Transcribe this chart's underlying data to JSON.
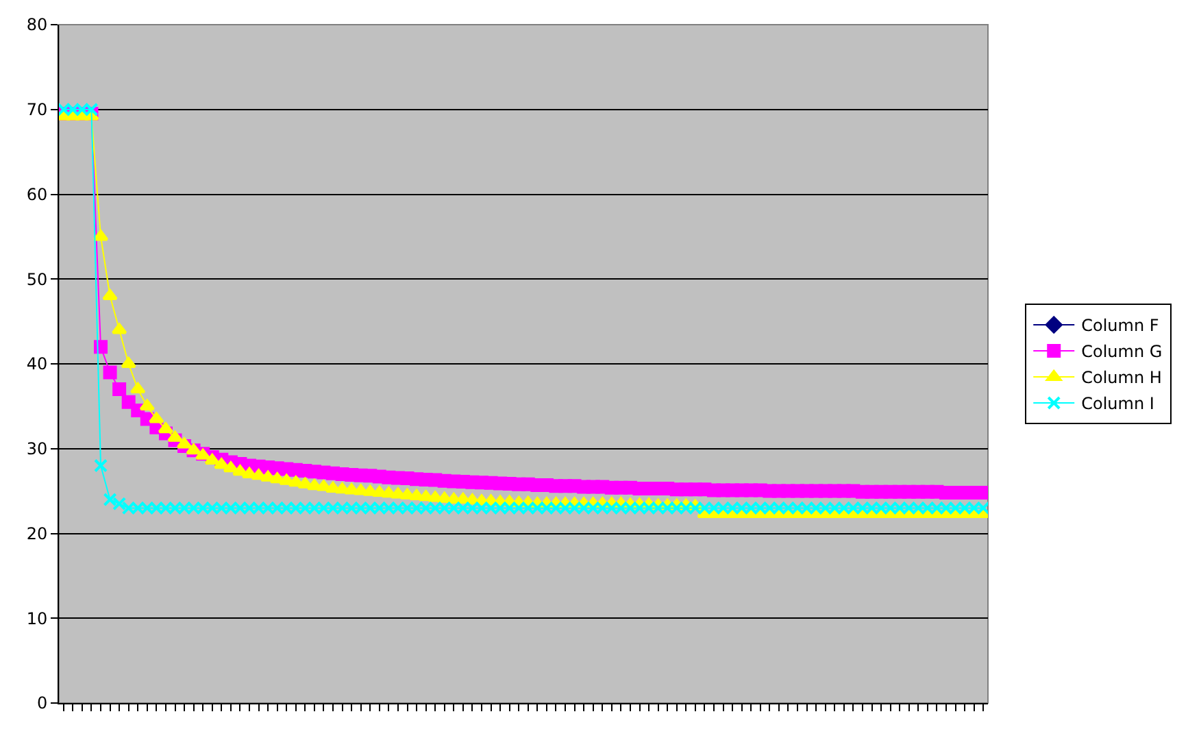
{
  "chart_data": {
    "type": "line",
    "categories": [
      null,
      null,
      null,
      null,
      null,
      null,
      null,
      null,
      null,
      null,
      null,
      null,
      null,
      null,
      null,
      null,
      null,
      null,
      null,
      null,
      null,
      null,
      null,
      null,
      null,
      null,
      null,
      null,
      null,
      null,
      null,
      null,
      null,
      null,
      null,
      null,
      null,
      null,
      null,
      null,
      null,
      null,
      null,
      null,
      null,
      null,
      null,
      null,
      null,
      null,
      null,
      null,
      null,
      null,
      null,
      null,
      null,
      null,
      null,
      null,
      null,
      null,
      null,
      null,
      null,
      null,
      null,
      null,
      null,
      null,
      null,
      null,
      null,
      null,
      null,
      null,
      null,
      null,
      null,
      null,
      null,
      null,
      null,
      null,
      null,
      null,
      null,
      null,
      null,
      null,
      null,
      null,
      null,
      null,
      null,
      null,
      null,
      null,
      null,
      null
    ],
    "series": [
      {
        "name": "Column F",
        "color": "#000080",
        "marker": "diamond",
        "values": [
          null,
          null,
          null,
          null,
          null,
          null,
          null,
          null,
          null,
          null,
          null,
          null,
          null,
          null,
          null,
          null,
          null,
          null,
          null,
          null,
          null,
          null,
          null,
          null,
          null,
          null,
          null,
          null,
          null,
          null,
          null,
          null,
          null,
          null,
          null,
          null,
          null,
          null,
          null,
          null,
          null,
          null,
          null,
          null,
          null,
          null,
          null,
          null,
          null,
          null,
          null,
          null,
          null,
          null,
          null,
          null,
          null,
          null,
          null,
          null,
          null,
          null,
          null,
          null,
          null,
          null,
          null,
          null,
          null,
          null,
          null,
          null,
          null,
          null,
          null,
          null,
          null,
          null,
          null,
          null,
          null,
          null,
          null,
          null,
          null,
          null,
          null,
          null,
          null,
          null,
          null,
          null,
          null,
          null,
          null,
          null,
          null,
          null,
          null,
          null
        ]
      },
      {
        "name": "Column G",
        "color": "#ff00ff",
        "marker": "square",
        "values": [
          69.5,
          69.5,
          69.5,
          69.5,
          42,
          39,
          37,
          35.5,
          34.5,
          33.5,
          32.5,
          31.8,
          31,
          30.3,
          29.8,
          29.4,
          29.0,
          28.7,
          28.4,
          28.2,
          28.0,
          27.9,
          27.8,
          27.7,
          27.6,
          27.5,
          27.4,
          27.3,
          27.2,
          27.1,
          27.0,
          26.9,
          26.85,
          26.8,
          26.7,
          26.6,
          26.55,
          26.5,
          26.4,
          26.35,
          26.3,
          26.2,
          26.15,
          26.1,
          26.05,
          26.0,
          25.95,
          25.9,
          25.85,
          25.8,
          25.8,
          25.7,
          25.7,
          25.6,
          25.6,
          25.6,
          25.5,
          25.5,
          25.5,
          25.4,
          25.4,
          25.4,
          25.3,
          25.3,
          25.3,
          25.3,
          25.2,
          25.2,
          25.2,
          25.2,
          25.1,
          25.1,
          25.1,
          25.1,
          25.1,
          25.1,
          25.0,
          25.0,
          25.0,
          25.0,
          25.0,
          25.0,
          25.0,
          25.0,
          25.0,
          25.0,
          24.9,
          24.9,
          24.9,
          24.9,
          24.9,
          24.9,
          24.9,
          24.9,
          24.9,
          24.8,
          24.8,
          24.8,
          24.8,
          24.8
        ]
      },
      {
        "name": "Column H",
        "color": "#ffff00",
        "marker": "triangle",
        "values": [
          69.2,
          69.2,
          69.2,
          69.2,
          55,
          48,
          44,
          40,
          37,
          35,
          33.5,
          32.3,
          31.3,
          30.5,
          29.8,
          29.2,
          28.6,
          28.1,
          27.7,
          27.3,
          27.0,
          26.8,
          26.6,
          26.4,
          26.2,
          26.0,
          25.8,
          25.6,
          25.5,
          25.3,
          25.2,
          25.1,
          25.0,
          24.9,
          24.8,
          24.7,
          24.6,
          24.5,
          24.4,
          24.3,
          24.2,
          24.1,
          24.0,
          24.0,
          23.9,
          23.8,
          23.8,
          23.7,
          23.7,
          23.6,
          23.6,
          23.5,
          23.5,
          23.5,
          23.5,
          23.5,
          23.5,
          23.5,
          23.5,
          23.5,
          23.5,
          23.4,
          23.4,
          23.4,
          23.3,
          23.3,
          23.3,
          23.3,
          23.2,
          22.3,
          22.3,
          22.3,
          22.3,
          22.3,
          22.3,
          22.3,
          22.3,
          22.3,
          22.3,
          22.3,
          22.3,
          22.3,
          22.3,
          22.3,
          22.3,
          22.3,
          22.3,
          22.3,
          22.3,
          22.3,
          22.3,
          22.3,
          22.3,
          22.3,
          22.3,
          22.3,
          22.3,
          22.3,
          22.3,
          22.3
        ]
      },
      {
        "name": "Column I",
        "color": "#00ffff",
        "marker": "cross",
        "values": [
          70,
          70,
          70,
          70,
          28,
          24,
          23.5,
          23,
          23,
          23,
          23,
          23,
          23,
          23,
          23,
          23,
          23,
          23,
          23,
          23,
          23,
          23,
          23,
          23,
          23,
          23,
          23,
          23,
          23,
          23,
          23,
          23,
          23,
          23,
          23,
          23,
          23,
          23,
          23,
          23,
          23,
          23,
          23,
          23,
          23,
          23,
          23,
          23,
          23,
          23,
          23,
          23,
          23,
          23,
          23,
          23,
          23,
          23,
          23,
          23,
          23,
          23,
          23,
          23,
          23,
          23,
          23,
          23,
          23,
          23,
          23,
          23,
          23,
          23,
          23,
          23,
          23,
          23,
          23,
          23,
          23,
          23,
          23,
          23,
          23,
          23,
          23,
          23,
          23,
          23,
          23,
          23,
          23,
          23,
          23,
          23,
          23,
          23,
          23,
          23
        ]
      }
    ],
    "ylim": [
      0,
      80
    ],
    "yticks": [
      0,
      10,
      20,
      30,
      40,
      50,
      60,
      70,
      80
    ],
    "grid": "y",
    "legend": "right",
    "tick_labels": "y",
    "line_style": "solid"
  }
}
